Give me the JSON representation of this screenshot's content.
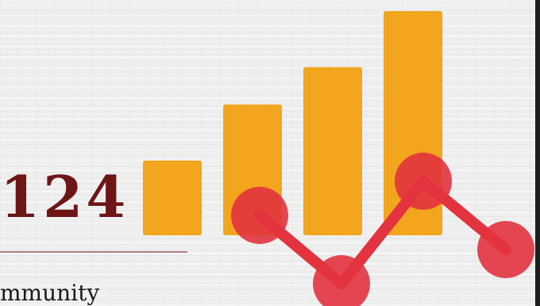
{
  "logo": {
    "number": "124",
    "tagline_fragment": "mmunity"
  },
  "icon": "bar-chart-with-trend-line-icon",
  "colors": {
    "bar": "#f2a51d",
    "node": "#e2333f",
    "number": "#6e1515",
    "background": "#efefef"
  },
  "chart_data": {
    "type": "bar",
    "series": [
      {
        "values": [
          4,
          7,
          9,
          12
        ]
      }
    ],
    "overlay_line": {
      "values": [
        3,
        1,
        4,
        2
      ]
    }
  }
}
